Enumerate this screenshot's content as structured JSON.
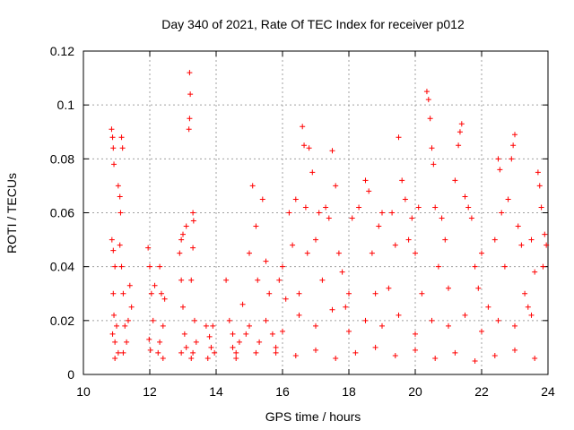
{
  "chart_data": {
    "type": "scatter",
    "title": "Day 340 of 2021, Rate Of TEC Index for receiver p012",
    "xlabel": "GPS time / hours",
    "ylabel": "ROTI / TECUs",
    "xlim": [
      10,
      24
    ],
    "ylim": [
      0,
      0.12
    ],
    "x_ticks": [
      10,
      12,
      14,
      16,
      18,
      20,
      22,
      24
    ],
    "x_tick_labels": [
      "10",
      "12",
      "14",
      "16",
      "18",
      "20",
      "22",
      "24"
    ],
    "y_ticks": [
      0,
      0.02,
      0.04,
      0.06,
      0.08,
      0.1,
      0.12
    ],
    "y_tick_labels": [
      "0",
      "0.02",
      "0.04",
      "0.06",
      "0.08",
      "0.1",
      "0.12"
    ],
    "grid": true,
    "marker": "+",
    "color": "#ff0000",
    "series": [
      {
        "points": [
          [
            10.85,
            0.091
          ],
          [
            10.88,
            0.088
          ],
          [
            10.9,
            0.084
          ],
          [
            10.92,
            0.078
          ],
          [
            10.86,
            0.05
          ],
          [
            10.9,
            0.046
          ],
          [
            10.95,
            0.04
          ],
          [
            10.9,
            0.03
          ],
          [
            10.92,
            0.022
          ],
          [
            10.88,
            0.015
          ],
          [
            10.95,
            0.012
          ],
          [
            11.0,
            0.018
          ],
          [
            11.05,
            0.07
          ],
          [
            11.1,
            0.066
          ],
          [
            11.12,
            0.06
          ],
          [
            11.15,
            0.088
          ],
          [
            11.18,
            0.084
          ],
          [
            11.1,
            0.048
          ],
          [
            11.15,
            0.04
          ],
          [
            11.2,
            0.03
          ],
          [
            11.25,
            0.018
          ],
          [
            11.3,
            0.012
          ],
          [
            11.35,
            0.02
          ],
          [
            11.2,
            0.008
          ],
          [
            11.05,
            0.008
          ],
          [
            10.95,
            0.006
          ],
          [
            11.4,
            0.033
          ],
          [
            11.45,
            0.025
          ],
          [
            11.95,
            0.047
          ],
          [
            12.0,
            0.04
          ],
          [
            12.05,
            0.03
          ],
          [
            12.1,
            0.02
          ],
          [
            11.98,
            0.013
          ],
          [
            12.02,
            0.009
          ],
          [
            12.15,
            0.033
          ],
          [
            12.3,
            0.04
          ],
          [
            12.35,
            0.03
          ],
          [
            12.4,
            0.018
          ],
          [
            12.3,
            0.012
          ],
          [
            12.25,
            0.008
          ],
          [
            12.4,
            0.006
          ],
          [
            12.45,
            0.028
          ],
          [
            12.9,
            0.045
          ],
          [
            12.95,
            0.05
          ],
          [
            13.0,
            0.052
          ],
          [
            13.1,
            0.055
          ],
          [
            12.95,
            0.035
          ],
          [
            13.0,
            0.025
          ],
          [
            13.05,
            0.015
          ],
          [
            13.1,
            0.01
          ],
          [
            12.95,
            0.008
          ],
          [
            13.2,
            0.112
          ],
          [
            13.22,
            0.104
          ],
          [
            13.2,
            0.095
          ],
          [
            13.18,
            0.091
          ],
          [
            13.3,
            0.06
          ],
          [
            13.32,
            0.057
          ],
          [
            13.3,
            0.047
          ],
          [
            13.25,
            0.035
          ],
          [
            13.35,
            0.02
          ],
          [
            13.4,
            0.012
          ],
          [
            13.3,
            0.008
          ],
          [
            13.25,
            0.006
          ],
          [
            13.7,
            0.018
          ],
          [
            13.8,
            0.014
          ],
          [
            13.9,
            0.018
          ],
          [
            13.85,
            0.01
          ],
          [
            13.95,
            0.008
          ],
          [
            13.75,
            0.006
          ],
          [
            14.3,
            0.035
          ],
          [
            14.4,
            0.02
          ],
          [
            14.5,
            0.01
          ],
          [
            14.6,
            0.008
          ],
          [
            14.7,
            0.012
          ],
          [
            14.8,
            0.026
          ],
          [
            14.9,
            0.015
          ],
          [
            15.0,
            0.045
          ],
          [
            15.1,
            0.07
          ],
          [
            15.2,
            0.055
          ],
          [
            15.25,
            0.035
          ],
          [
            15.3,
            0.012
          ],
          [
            15.4,
            0.065
          ],
          [
            15.5,
            0.042
          ],
          [
            15.6,
            0.03
          ],
          [
            15.7,
            0.015
          ],
          [
            15.8,
            0.008
          ],
          [
            15.9,
            0.035
          ],
          [
            16.0,
            0.04
          ],
          [
            16.1,
            0.028
          ],
          [
            16.2,
            0.06
          ],
          [
            16.3,
            0.048
          ],
          [
            16.4,
            0.065
          ],
          [
            16.5,
            0.03
          ],
          [
            16.6,
            0.092
          ],
          [
            16.65,
            0.085
          ],
          [
            16.7,
            0.062
          ],
          [
            16.75,
            0.045
          ],
          [
            16.8,
            0.084
          ],
          [
            16.9,
            0.075
          ],
          [
            17.0,
            0.05
          ],
          [
            17.1,
            0.06
          ],
          [
            17.2,
            0.035
          ],
          [
            17.3,
            0.062
          ],
          [
            17.4,
            0.058
          ],
          [
            17.5,
            0.083
          ],
          [
            17.6,
            0.07
          ],
          [
            17.7,
            0.045
          ],
          [
            17.8,
            0.038
          ],
          [
            17.9,
            0.025
          ],
          [
            18.0,
            0.03
          ],
          [
            18.1,
            0.058
          ],
          [
            18.3,
            0.062
          ],
          [
            18.5,
            0.072
          ],
          [
            18.6,
            0.068
          ],
          [
            18.7,
            0.045
          ],
          [
            18.8,
            0.03
          ],
          [
            18.9,
            0.055
          ],
          [
            19.0,
            0.06
          ],
          [
            19.2,
            0.032
          ],
          [
            19.3,
            0.06
          ],
          [
            19.4,
            0.048
          ],
          [
            19.5,
            0.088
          ],
          [
            19.6,
            0.072
          ],
          [
            19.7,
            0.065
          ],
          [
            19.8,
            0.05
          ],
          [
            19.9,
            0.058
          ],
          [
            20.0,
            0.045
          ],
          [
            20.1,
            0.062
          ],
          [
            20.2,
            0.03
          ],
          [
            20.35,
            0.105
          ],
          [
            20.4,
            0.102
          ],
          [
            20.45,
            0.095
          ],
          [
            20.5,
            0.084
          ],
          [
            20.55,
            0.078
          ],
          [
            20.6,
            0.062
          ],
          [
            20.7,
            0.04
          ],
          [
            20.8,
            0.058
          ],
          [
            20.9,
            0.05
          ],
          [
            21.0,
            0.032
          ],
          [
            21.2,
            0.072
          ],
          [
            21.3,
            0.085
          ],
          [
            21.35,
            0.09
          ],
          [
            21.4,
            0.093
          ],
          [
            21.5,
            0.066
          ],
          [
            21.6,
            0.062
          ],
          [
            21.7,
            0.058
          ],
          [
            21.8,
            0.04
          ],
          [
            21.9,
            0.032
          ],
          [
            22.0,
            0.045
          ],
          [
            22.2,
            0.025
          ],
          [
            22.4,
            0.05
          ],
          [
            22.5,
            0.08
          ],
          [
            22.55,
            0.076
          ],
          [
            22.6,
            0.06
          ],
          [
            22.7,
            0.04
          ],
          [
            22.8,
            0.065
          ],
          [
            22.9,
            0.08
          ],
          [
            22.95,
            0.085
          ],
          [
            23.0,
            0.089
          ],
          [
            23.1,
            0.055
          ],
          [
            23.2,
            0.048
          ],
          [
            23.3,
            0.03
          ],
          [
            23.4,
            0.025
          ],
          [
            23.5,
            0.05
          ],
          [
            23.6,
            0.038
          ],
          [
            23.7,
            0.075
          ],
          [
            23.75,
            0.07
          ],
          [
            23.8,
            0.062
          ],
          [
            23.85,
            0.04
          ],
          [
            23.9,
            0.052
          ],
          [
            23.95,
            0.048
          ],
          [
            14.5,
            0.015
          ],
          [
            15.0,
            0.018
          ],
          [
            15.5,
            0.02
          ],
          [
            16.0,
            0.016
          ],
          [
            16.5,
            0.022
          ],
          [
            17.0,
            0.018
          ],
          [
            17.5,
            0.024
          ],
          [
            18.0,
            0.016
          ],
          [
            18.5,
            0.02
          ],
          [
            19.0,
            0.018
          ],
          [
            19.5,
            0.022
          ],
          [
            20.0,
            0.015
          ],
          [
            20.5,
            0.02
          ],
          [
            21.0,
            0.018
          ],
          [
            21.5,
            0.022
          ],
          [
            22.0,
            0.016
          ],
          [
            22.5,
            0.02
          ],
          [
            23.0,
            0.018
          ],
          [
            23.5,
            0.022
          ],
          [
            14.6,
            0.006
          ],
          [
            15.2,
            0.008
          ],
          [
            15.8,
            0.01
          ],
          [
            16.4,
            0.007
          ],
          [
            17.0,
            0.009
          ],
          [
            17.6,
            0.006
          ],
          [
            18.2,
            0.008
          ],
          [
            18.8,
            0.01
          ],
          [
            19.4,
            0.007
          ],
          [
            20.0,
            0.009
          ],
          [
            20.6,
            0.006
          ],
          [
            21.2,
            0.008
          ],
          [
            21.8,
            0.005
          ],
          [
            22.4,
            0.007
          ],
          [
            23.0,
            0.009
          ],
          [
            23.6,
            0.006
          ]
        ]
      }
    ]
  }
}
